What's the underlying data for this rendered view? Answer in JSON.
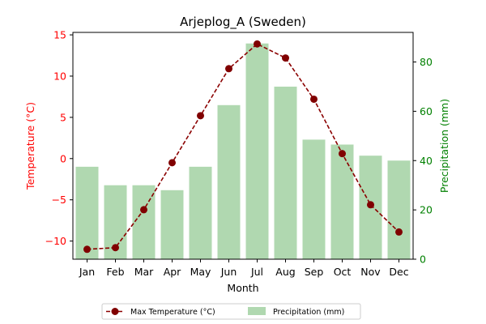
{
  "chart_data": {
    "type": "bar",
    "title": "Arjeplog_A (Sweden)",
    "xlabel": "Month",
    "categories": [
      "Jan",
      "Feb",
      "Mar",
      "Apr",
      "May",
      "Jun",
      "Jul",
      "Aug",
      "Sep",
      "Oct",
      "Nov",
      "Dec"
    ],
    "grid": false,
    "legend_position": "bottom-center",
    "y_left": {
      "label": "Temperature (°C)",
      "ylim": [
        -12.2,
        15.3
      ],
      "ticks": [
        -10,
        -5,
        0,
        5,
        10,
        15
      ],
      "color": "#ff0000"
    },
    "y_right": {
      "label": "Precipitation (mm)",
      "ylim": [
        0,
        92
      ],
      "ticks": [
        0,
        20,
        40,
        60,
        80
      ],
      "color": "#008000"
    },
    "series": [
      {
        "name": "Max Temperature (°C)",
        "type": "line",
        "axis": "left",
        "color": "#8b0000",
        "style": "dashed",
        "marker": "circle",
        "values": [
          -11.0,
          -10.8,
          -6.2,
          -0.5,
          5.2,
          10.9,
          13.9,
          12.2,
          7.2,
          0.6,
          -5.6,
          -8.9
        ]
      },
      {
        "name": "Precipitation (mm)",
        "type": "bar",
        "axis": "right",
        "color": "#b0d8b0",
        "values": [
          37.5,
          30,
          30,
          28,
          37.5,
          62.5,
          87.5,
          70,
          48.5,
          46.5,
          42,
          40
        ]
      }
    ]
  }
}
